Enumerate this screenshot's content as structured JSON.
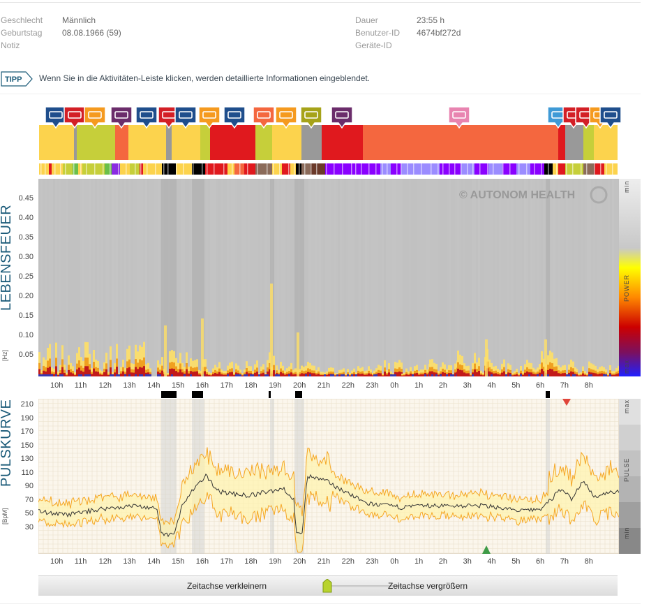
{
  "patient": {
    "left": [
      {
        "label": "Geschlecht",
        "value": "Männlich"
      },
      {
        "label": "Geburtstag",
        "value": "08.08.1966 (59)"
      },
      {
        "label": "Notiz",
        "value": ""
      }
    ],
    "right": [
      {
        "label": "Dauer",
        "value": "23:55 h"
      },
      {
        "label": "Benutzer-ID",
        "value": "4674bf272d"
      },
      {
        "label": "Geräte-ID",
        "value": ""
      }
    ]
  },
  "tip": {
    "badge": "TIPP",
    "text": "Wenn Sie in die Aktivitäten-Leiste klicken, werden detaillierte Informationen eingeblendet."
  },
  "activity_icons": [
    {
      "name": "keyboard-icon",
      "color": "#1f4e8c"
    },
    {
      "name": "question-icon",
      "color": "#d31f26"
    },
    {
      "name": "meal-icon",
      "color": "#f59a1f"
    },
    {
      "name": "sleep-icon",
      "color": "#6b2d6b"
    },
    {
      "name": "keyboard-icon",
      "color": "#1f4e8c"
    },
    {
      "name": "question-icon",
      "color": "#d31f26"
    },
    {
      "name": "keyboard-icon",
      "color": "#1f4e8c"
    },
    {
      "name": "meal-icon",
      "color": "#f59a1f"
    },
    {
      "name": "keyboard-icon",
      "color": "#1f4e8c"
    },
    {
      "name": "walking-icon",
      "color": "#f4673f"
    },
    {
      "name": "meal-icon",
      "color": "#f59a1f"
    },
    {
      "name": "hiking-icon",
      "color": "#a6a319"
    },
    {
      "name": "sleep-icon",
      "color": "#6b2d6b"
    },
    {
      "name": "bed-icon",
      "color": "#e884b0"
    },
    {
      "name": "head-icon",
      "color": "#3f9ad6"
    },
    {
      "name": "question-icon",
      "color": "#d31f26"
    },
    {
      "name": "question-icon",
      "color": "#d31f26"
    },
    {
      "name": "meal-icon",
      "color": "#f59a1f"
    },
    {
      "name": "keyboard-icon",
      "color": "#1f4e8c"
    }
  ],
  "spectrogram": {
    "title": "LEBENSFEUER",
    "unit": "[Hz]",
    "yticks": [
      "0.45",
      "0.40",
      "0.35",
      "0.30",
      "0.25",
      "0.20",
      "0.15",
      "0.10",
      "0.05"
    ],
    "watermark": "© AUTONOM HEALTH",
    "legend_top": "min",
    "legend_mid": "POWER",
    "legend_bottom": "max"
  },
  "time_axis": [
    "10h",
    "11h",
    "12h",
    "13h",
    "14h",
    "15h",
    "16h",
    "17h",
    "18h",
    "19h",
    "20h",
    "21h",
    "22h",
    "23h",
    "0h",
    "1h",
    "2h",
    "3h",
    "4h",
    "5h",
    "6h",
    "7h",
    "8h"
  ],
  "pulse": {
    "title": "PULSKURVE",
    "unit": "[BpM]",
    "yticks": [
      "210",
      "190",
      "170",
      "150",
      "130",
      "110",
      "90",
      "70",
      "50",
      "30"
    ],
    "legend_top": "max",
    "legend_mid": "PULSE",
    "legend_bottom": "min",
    "marker_max": "#e0453a",
    "marker_min": "#3e9b47"
  },
  "zoom": {
    "shrink_label": "Zeitachse verkleinern",
    "grow_label": "Zeitachse vergrößern"
  }
}
